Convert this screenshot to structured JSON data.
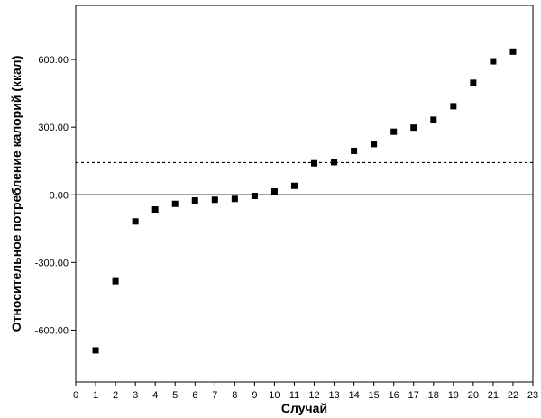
{
  "chart_data": {
    "type": "scatter",
    "xlabel": "Случай",
    "ylabel": "Относительное потребление калорий (ккал)",
    "xlim": [
      0,
      23
    ],
    "ylim": [
      -830,
      840
    ],
    "x_ticks": [
      0,
      1,
      2,
      3,
      4,
      5,
      6,
      7,
      8,
      9,
      10,
      11,
      12,
      13,
      14,
      15,
      16,
      17,
      18,
      19,
      20,
      21,
      22,
      23
    ],
    "x_tick_labels": [
      "0",
      "1",
      "2",
      "3",
      "4",
      "5",
      "6",
      "7",
      "8",
      "9",
      "10",
      "11",
      "12",
      "13",
      "14",
      "15",
      "16",
      "17",
      "18",
      "19",
      "20",
      "21",
      "22",
      "23"
    ],
    "y_ticks": [
      -600,
      -300,
      0,
      300,
      600
    ],
    "y_tick_labels": [
      "-600.00",
      "-300.00",
      "0.00",
      "300.00",
      "600.00"
    ],
    "series": [
      {
        "x": [
          1,
          2,
          3,
          4,
          5,
          6,
          7,
          8,
          9,
          10,
          11,
          12,
          13,
          14,
          15,
          16,
          17,
          18,
          19,
          20,
          21,
          22
        ],
        "y": [
          -690,
          -383,
          -118,
          -65,
          -40,
          -25,
          -22,
          -18,
          -5,
          15,
          40,
          140,
          145,
          195,
          225,
          280,
          298,
          333,
          393,
          497,
          592,
          635
        ]
      }
    ],
    "reference_lines": [
      {
        "y": 0,
        "style": "solid"
      },
      {
        "y": 143,
        "style": "dashed"
      }
    ],
    "grid": false,
    "marker": "square",
    "marker_color": "#000000"
  }
}
